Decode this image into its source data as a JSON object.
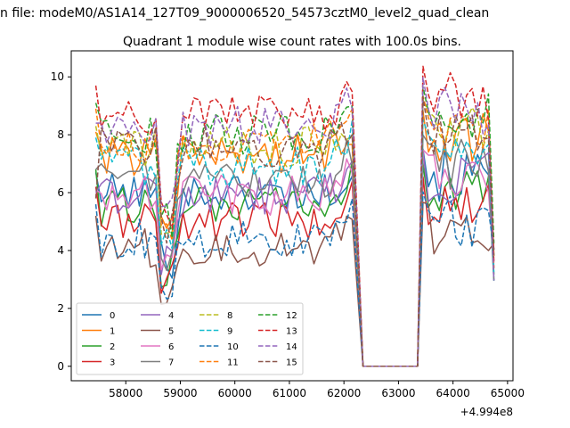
{
  "chart_data": {
    "type": "line",
    "suptitle": "n file: modeM0/AS1A14_127T09_9000006520_54573cztM0_level2_quad_clean",
    "title": "Quadrant 1 module wise count rates with 100.0s bins.",
    "xlabel": "",
    "ylabel": "",
    "x_offset_label": "+4.994e8",
    "xlim": [
      57000,
      65100
    ],
    "ylim": [
      -0.5,
      10.9
    ],
    "xticks": [
      58000,
      59000,
      60000,
      61000,
      62000,
      63000,
      64000,
      65000
    ],
    "xtick_labels": [
      "58000",
      "59000",
      "60000",
      "61000",
      "62000",
      "63000",
      "64000",
      "65000"
    ],
    "yticks": [
      0,
      2,
      4,
      6,
      8,
      10
    ],
    "ytick_labels": [
      "0",
      "2",
      "4",
      "6",
      "8",
      "10"
    ],
    "legend_position": "lower-left",
    "bin_seconds": 100.0,
    "x_segments": [
      [
        57450,
        62150
      ],
      [
        62350,
        63350
      ],
      [
        63450,
        64750
      ]
    ],
    "baselines": [
      6.7,
      8.1,
      6.8,
      6.2,
      6.0,
      5.2,
      6.1,
      6.8,
      8.3,
      7.9,
      5.6,
      8.9,
      9.1,
      9.7,
      8.4,
      5.8
    ],
    "series": [
      {
        "name": "0",
        "color": "#1f77b4",
        "dash": "solid",
        "level": 6.0
      },
      {
        "name": "1",
        "color": "#ff7f0e",
        "dash": "solid",
        "level": 7.3
      },
      {
        "name": "2",
        "color": "#2ca02c",
        "dash": "solid",
        "level": 5.5
      },
      {
        "name": "3",
        "color": "#d62728",
        "dash": "solid",
        "level": 5.0
      },
      {
        "name": "4",
        "color": "#9467bd",
        "dash": "solid",
        "level": 5.9
      },
      {
        "name": "5",
        "color": "#8c564b",
        "dash": "solid",
        "level": 4.1
      },
      {
        "name": "6",
        "color": "#e377c2",
        "dash": "solid",
        "level": 5.9
      },
      {
        "name": "7",
        "color": "#7f7f7f",
        "dash": "solid",
        "level": 6.4
      },
      {
        "name": "8",
        "color": "#bcbd22",
        "dash": "dashed",
        "level": 7.6
      },
      {
        "name": "9",
        "color": "#17becf",
        "dash": "dashed",
        "level": 6.9
      },
      {
        "name": "10",
        "color": "#1f77b4",
        "dash": "dashed",
        "level": 4.4
      },
      {
        "name": "11",
        "color": "#ff7f0e",
        "dash": "dashed",
        "level": 7.7
      },
      {
        "name": "12",
        "color": "#2ca02c",
        "dash": "dashed",
        "level": 8.0
      },
      {
        "name": "13",
        "color": "#d62728",
        "dash": "dashed",
        "level": 8.7
      },
      {
        "name": "14",
        "color": "#9467bd",
        "dash": "dashed",
        "level": 8.3
      },
      {
        "name": "15",
        "color": "#8c564b",
        "dash": "dashed",
        "level": 7.6
      }
    ]
  }
}
